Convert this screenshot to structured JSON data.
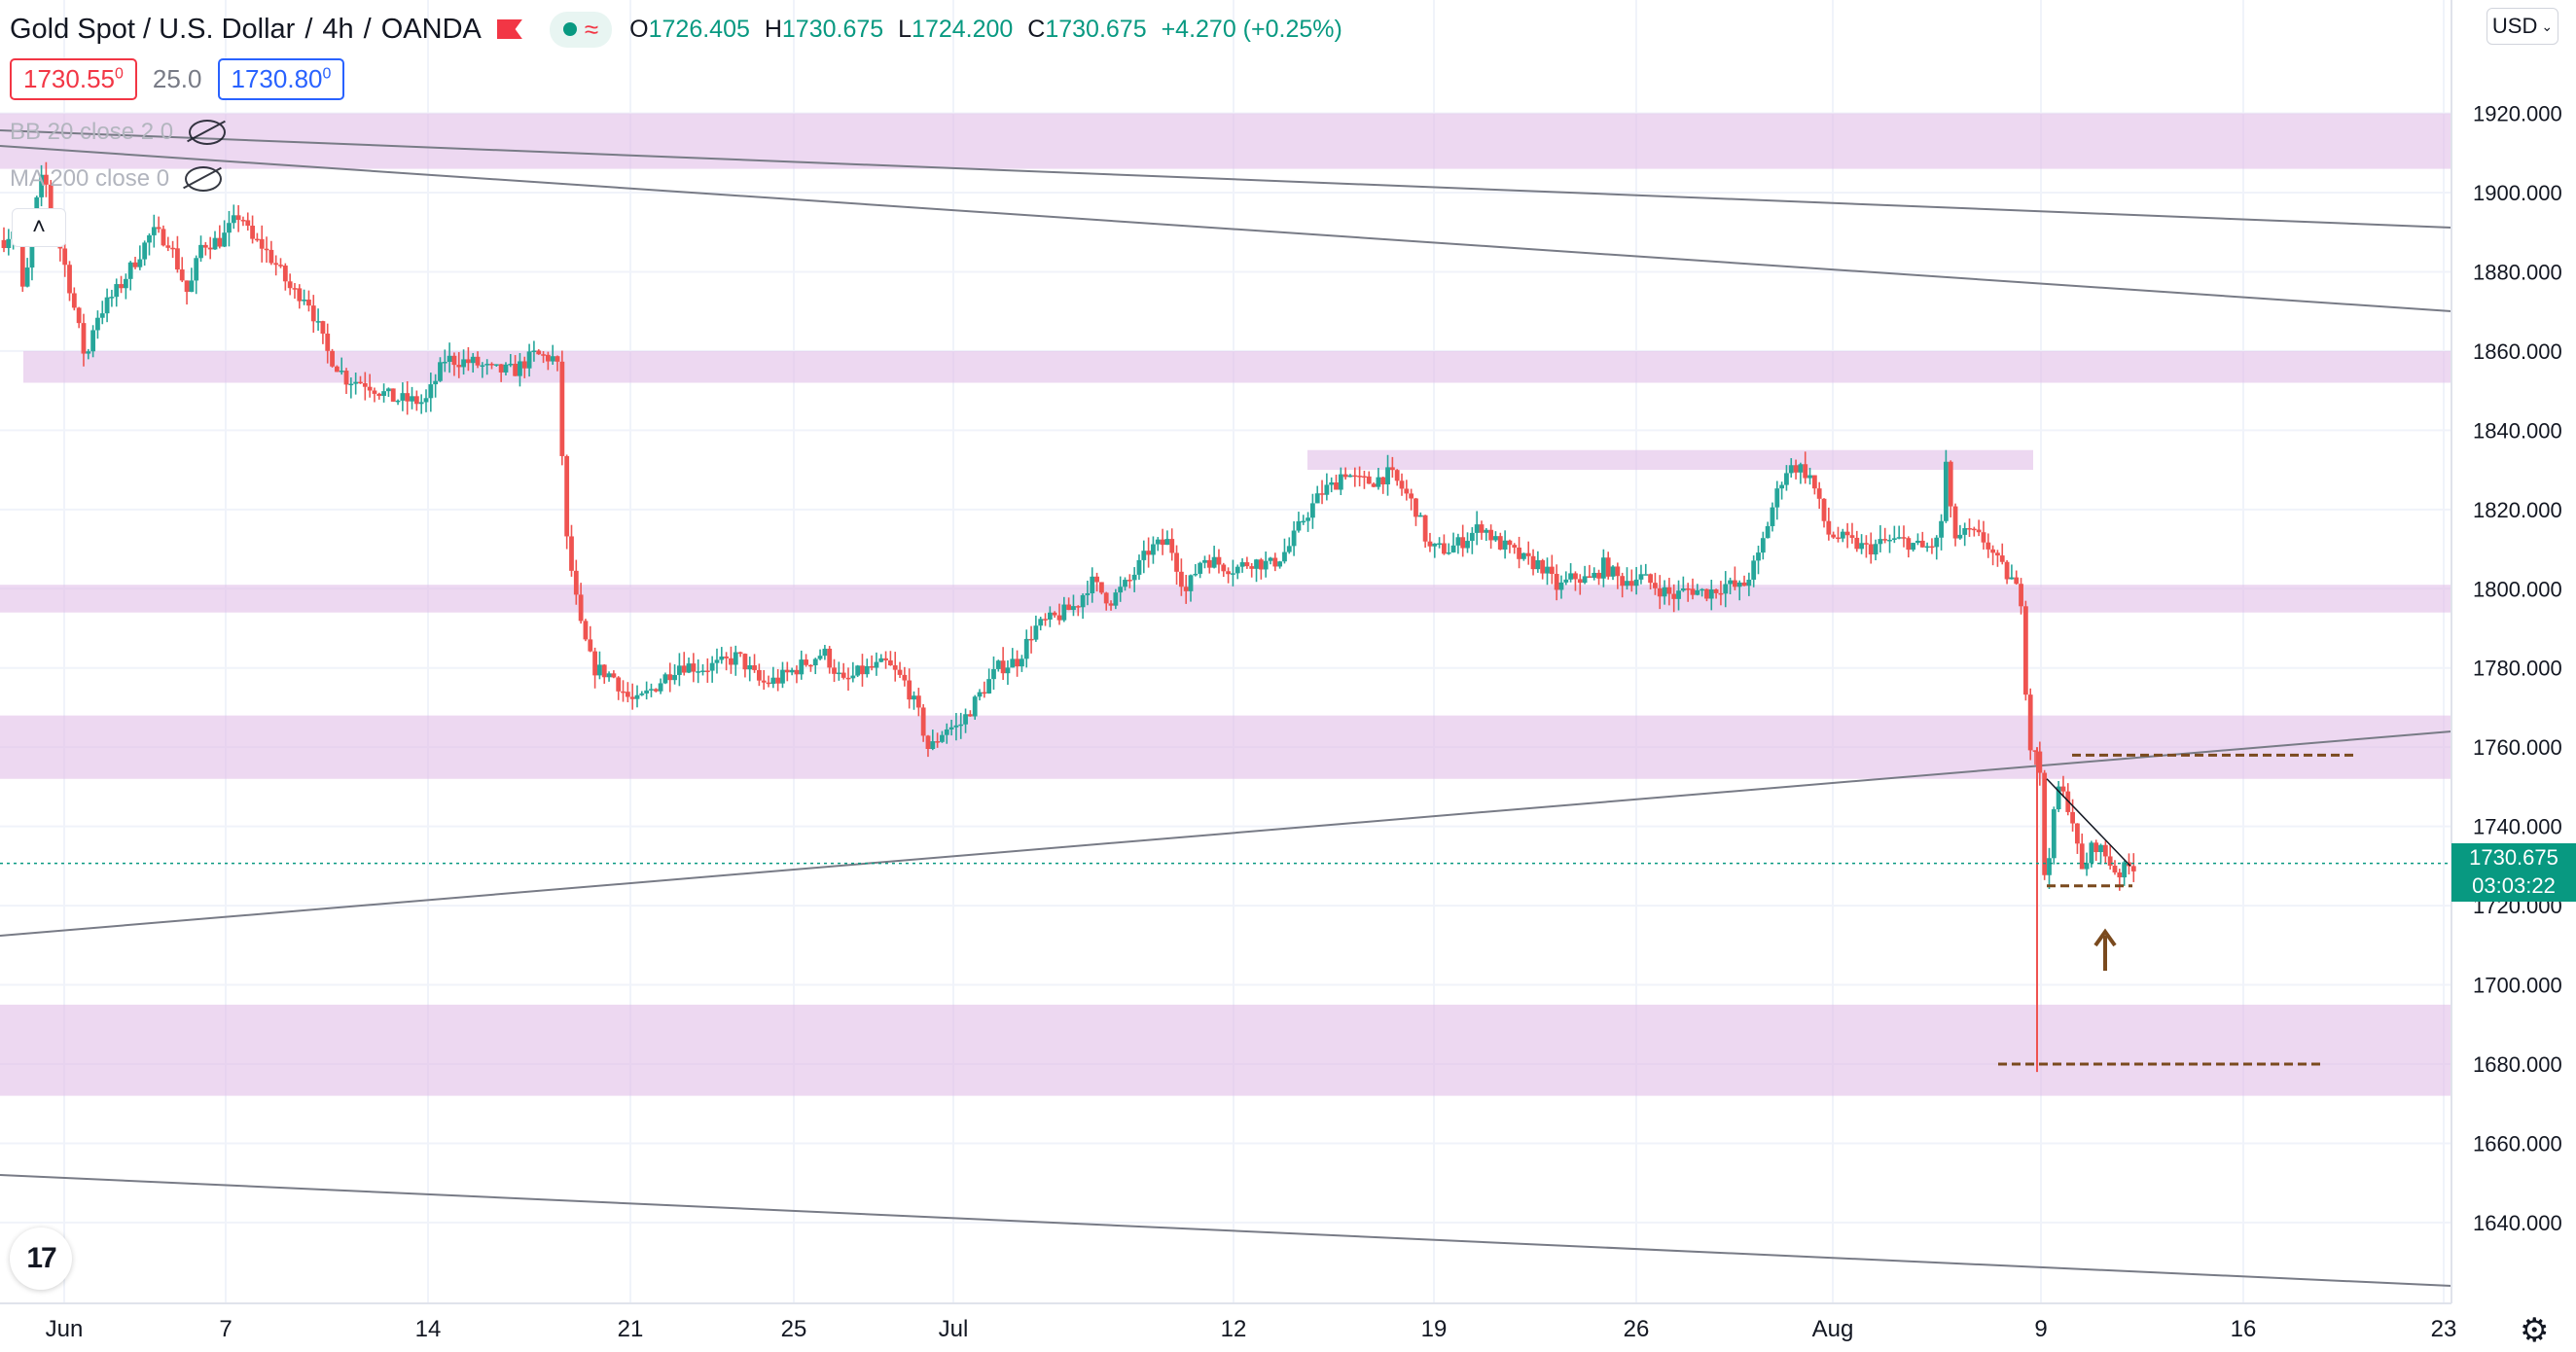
{
  "header": {
    "symbol": "Gold Spot / U.S. Dollar",
    "interval": "4h",
    "exchange": "OANDA",
    "ohlc": {
      "o_label": "O",
      "o": "1726.405",
      "h_label": "H",
      "h": "1730.675",
      "l_label": "L",
      "l": "1724.200",
      "c_label": "C",
      "c": "1730.675",
      "change": "+4.270 (+0.25%)"
    }
  },
  "prices": {
    "sell": "1730.55",
    "sell_sup": "0",
    "spread": "25.0",
    "buy": "1730.80",
    "buy_sup": "0"
  },
  "indicators": [
    "BB 20 close 2 0",
    "MA 200 close 0"
  ],
  "collapse_glyph": "˄",
  "currency": "USD",
  "last_price": {
    "value": "1730.675",
    "countdown": "03:03:22"
  },
  "logo_text": "17",
  "colors": {
    "up": "#26a69a",
    "down": "#ef5350",
    "zone": "#e1bee7",
    "trend": "#787b86",
    "level": "#7a4a1e",
    "last": "#089981"
  },
  "chart_data": {
    "type": "candlestick",
    "title": "Gold Spot / U.S. Dollar",
    "ylim": [
      1620,
      1960
    ],
    "y_ticks": [
      "1640.000",
      "1660.000",
      "1680.000",
      "1700.000",
      "1720.000",
      "1740.000",
      "1760.000",
      "1780.000",
      "1800.000",
      "1820.000",
      "1840.000",
      "1860.000",
      "1880.000",
      "1900.000",
      "1920.000"
    ],
    "x_ticks": [
      "Jun",
      "7",
      "14",
      "21",
      "25",
      "Jul",
      "12",
      "19",
      "26",
      "Aug",
      "9",
      "16",
      "23"
    ],
    "price_path": [
      [
        0,
        1888
      ],
      [
        8,
        1892
      ],
      [
        12,
        1872
      ],
      [
        18,
        1894
      ],
      [
        24,
        1905
      ],
      [
        30,
        1893
      ],
      [
        38,
        1880
      ],
      [
        50,
        1857
      ],
      [
        55,
        1868
      ],
      [
        70,
        1876
      ],
      [
        90,
        1890
      ],
      [
        100,
        1888
      ],
      [
        112,
        1874
      ],
      [
        120,
        1887
      ],
      [
        132,
        1888
      ],
      [
        144,
        1895
      ],
      [
        150,
        1888
      ],
      [
        156,
        1887
      ],
      [
        165,
        1882
      ],
      [
        175,
        1875
      ],
      [
        184,
        1874
      ],
      [
        196,
        1860
      ],
      [
        208,
        1853
      ],
      [
        220,
        1852
      ],
      [
        236,
        1848
      ],
      [
        256,
        1847
      ],
      [
        268,
        1858
      ],
      [
        286,
        1857
      ],
      [
        296,
        1855
      ],
      [
        310,
        1855
      ],
      [
        322,
        1859
      ],
      [
        336,
        1858
      ],
      [
        342,
        1812
      ],
      [
        350,
        1791
      ],
      [
        358,
        1780
      ],
      [
        370,
        1778
      ],
      [
        378,
        1773
      ],
      [
        384,
        1771
      ],
      [
        392,
        1774
      ],
      [
        410,
        1781
      ],
      [
        424,
        1780
      ],
      [
        436,
        1781
      ],
      [
        446,
        1783
      ],
      [
        460,
        1776
      ],
      [
        470,
        1777
      ],
      [
        482,
        1780
      ],
      [
        498,
        1784
      ],
      [
        510,
        1776
      ],
      [
        520,
        1779
      ],
      [
        536,
        1781
      ],
      [
        548,
        1776
      ],
      [
        556,
        1768
      ],
      [
        562,
        1759
      ],
      [
        572,
        1765
      ],
      [
        580,
        1765
      ],
      [
        594,
        1774
      ],
      [
        604,
        1780
      ],
      [
        616,
        1782
      ],
      [
        626,
        1790
      ],
      [
        640,
        1793
      ],
      [
        652,
        1796
      ],
      [
        660,
        1802
      ],
      [
        672,
        1797
      ],
      [
        684,
        1802
      ],
      [
        696,
        1810
      ],
      [
        708,
        1812
      ],
      [
        718,
        1799
      ],
      [
        728,
        1808
      ],
      [
        740,
        1806
      ],
      [
        748,
        1805
      ],
      [
        758,
        1807
      ],
      [
        770,
        1806
      ],
      [
        780,
        1810
      ],
      [
        790,
        1818
      ],
      [
        802,
        1825
      ],
      [
        808,
        1826
      ],
      [
        814,
        1830
      ],
      [
        822,
        1827
      ],
      [
        830,
        1827
      ],
      [
        842,
        1829
      ],
      [
        850,
        1825
      ],
      [
        858,
        1820
      ],
      [
        866,
        1810
      ],
      [
        878,
        1810
      ],
      [
        886,
        1812
      ],
      [
        898,
        1816
      ],
      [
        906,
        1812
      ],
      [
        914,
        1810
      ],
      [
        924,
        1807
      ],
      [
        934,
        1806
      ],
      [
        944,
        1800
      ],
      [
        954,
        1803
      ],
      [
        964,
        1802
      ],
      [
        972,
        1806
      ],
      [
        982,
        1802
      ],
      [
        994,
        1803
      ],
      [
        1006,
        1800
      ],
      [
        1014,
        1798
      ],
      [
        1024,
        1800
      ],
      [
        1034,
        1799
      ],
      [
        1046,
        1801
      ],
      [
        1056,
        1800
      ],
      [
        1066,
        1808
      ],
      [
        1074,
        1820
      ],
      [
        1082,
        1830
      ],
      [
        1090,
        1831
      ],
      [
        1098,
        1828
      ],
      [
        1108,
        1814
      ],
      [
        1120,
        1812
      ],
      [
        1132,
        1810
      ],
      [
        1144,
        1812
      ],
      [
        1156,
        1812
      ],
      [
        1166,
        1810
      ],
      [
        1176,
        1812
      ],
      [
        1180,
        1832
      ],
      [
        1184,
        1813
      ],
      [
        1194,
        1814
      ],
      [
        1204,
        1812
      ],
      [
        1212,
        1806
      ],
      [
        1220,
        1802
      ],
      [
        1226,
        1797
      ],
      [
        1230,
        1760
      ],
      [
        1236,
        1760
      ],
      [
        1240,
        1726
      ],
      [
        1248,
        1750
      ],
      [
        1256,
        1744
      ],
      [
        1262,
        1728
      ],
      [
        1270,
        1736
      ],
      [
        1278,
        1732
      ],
      [
        1284,
        1728
      ],
      [
        1292,
        1730
      ],
      [
        1296,
        1730.675
      ]
    ],
    "zones": [
      {
        "from": 1906,
        "to": 1920
      },
      {
        "from": 1852,
        "to": 1860
      },
      {
        "from": 1830,
        "to": 1835
      },
      {
        "from": 1794,
        "to": 1801
      },
      {
        "from": 1752,
        "to": 1768
      },
      {
        "from": 1672,
        "to": 1695
      }
    ],
    "levels": [
      1758,
      1725,
      1680
    ],
    "last": 1730.675
  }
}
